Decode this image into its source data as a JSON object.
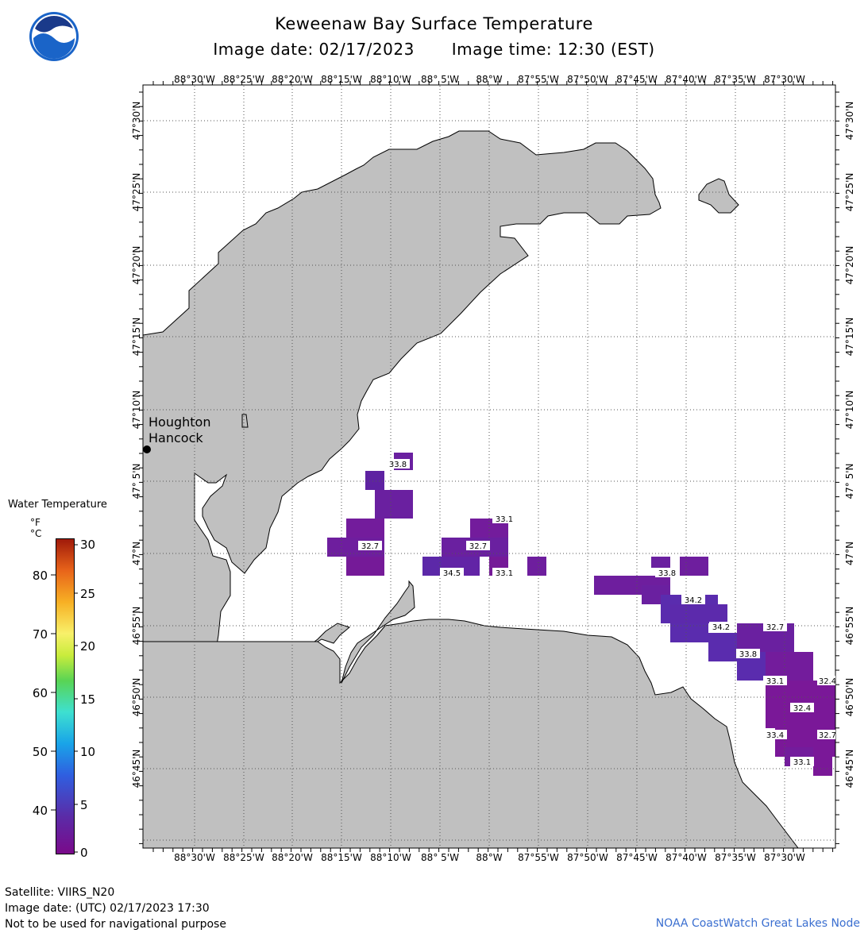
{
  "header": {
    "title": "Keweenaw Bay Surface Temperature",
    "image_date": "Image date: 02/17/2023",
    "image_time": "Image time: 12:30 (EST)"
  },
  "map": {
    "lon_labels": [
      "88°30'W",
      "88°25'W",
      "88°20'W",
      "88°15'W",
      "88°10'W",
      "88° 5'W",
      "88°W",
      "87°55'W",
      "87°50'W",
      "87°45'W",
      "87°40'W",
      "87°35'W",
      "87°30'W"
    ],
    "lat_labels": [
      "47°30'N",
      "47°25'N",
      "47°20'N",
      "47°15'N",
      "47°10'N",
      "47° 5'N",
      "47°N",
      "46°55'N",
      "46°50'N",
      "46°45'N"
    ],
    "place_labels": [
      "Houghton",
      "Hancock"
    ],
    "colors": {
      "land": "#c0c0c0",
      "water": "#ffffff",
      "grid": "#555555"
    },
    "temperature_labels": [
      "33.8",
      "32.7",
      "33.1",
      "32.7",
      "34.5",
      "33.1",
      "33.8",
      "34.2",
      "34.2",
      "32.7",
      "33.8",
      "33.1",
      "32.4",
      "32.4",
      "33.4",
      "32.7",
      "33.1"
    ]
  },
  "legend": {
    "title": "Water Temperature",
    "unit_f": "°F",
    "unit_c": "°C",
    "f_ticks": [
      "80",
      "70",
      "60",
      "50",
      "40"
    ],
    "c_ticks": [
      "30",
      "25",
      "20",
      "15",
      "10",
      "5",
      "0"
    ]
  },
  "footer": {
    "satellite": "Satellite: VIIRS_N20",
    "utc_date": "Image date: (UTC) 02/17/2023  17:30",
    "disclaimer": "Not to be used for navigational purpose",
    "credit": "NOAA CoastWatch Great Lakes Node"
  }
}
